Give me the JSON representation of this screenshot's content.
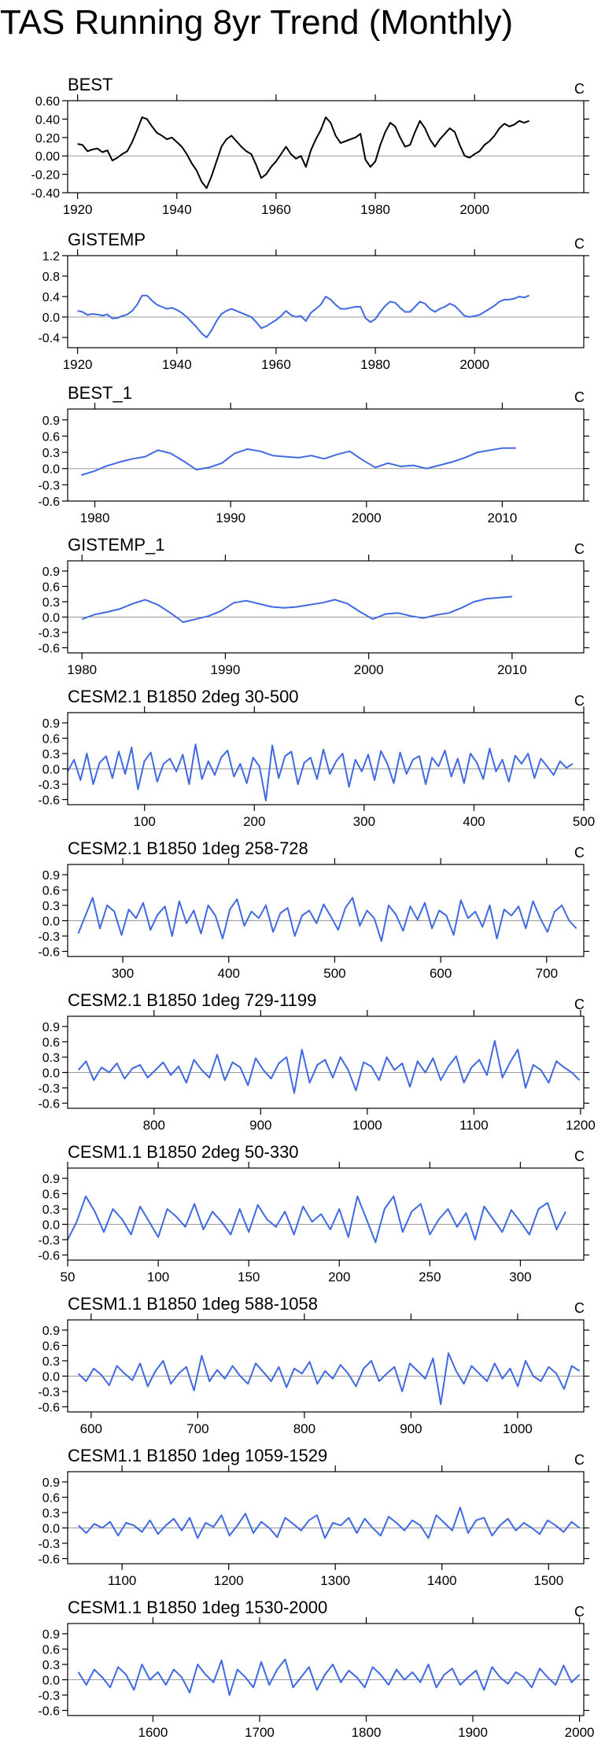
{
  "title": "TAS Running 8yr Trend (Monthly)",
  "chart_data": [
    {
      "type": "line",
      "title": "BEST",
      "units": "C",
      "xlim": [
        1918,
        2022
      ],
      "ylim": [
        -0.4,
        0.6
      ],
      "xticks": [
        1920,
        1940,
        1960,
        1980,
        2000
      ],
      "yticks": [
        -0.4,
        -0.2,
        0.0,
        0.2,
        0.4,
        0.6
      ],
      "ytick_labels": [
        "-0.40",
        "-0.20",
        "0.00",
        "0.20",
        "0.40",
        "0.60"
      ],
      "color": "#000000",
      "x_start": 1920,
      "x_end": 2011,
      "values": [
        0.13,
        0.12,
        0.05,
        0.07,
        0.08,
        0.04,
        0.06,
        -0.05,
        -0.02,
        0.02,
        0.05,
        0.15,
        0.28,
        0.42,
        0.4,
        0.32,
        0.25,
        0.22,
        0.18,
        0.2,
        0.15,
        0.1,
        0.02,
        -0.08,
        -0.16,
        -0.28,
        -0.35,
        -0.22,
        -0.06,
        0.1,
        0.18,
        0.22,
        0.16,
        0.1,
        0.05,
        0.02,
        -0.1,
        -0.24,
        -0.2,
        -0.12,
        -0.06,
        0.02,
        0.1,
        0.02,
        -0.03,
        0.0,
        -0.12,
        0.06,
        0.18,
        0.28,
        0.42,
        0.36,
        0.22,
        0.14,
        0.16,
        0.18,
        0.2,
        0.24,
        -0.04,
        -0.12,
        -0.06,
        0.12,
        0.26,
        0.36,
        0.32,
        0.2,
        0.1,
        0.12,
        0.26,
        0.38,
        0.3,
        0.18,
        0.1,
        0.18,
        0.24,
        0.3,
        0.26,
        0.12,
        0.0,
        -0.02,
        0.02,
        0.05,
        0.12,
        0.16,
        0.22,
        0.3,
        0.35,
        0.32,
        0.34,
        0.38,
        0.36,
        0.38
      ]
    },
    {
      "type": "line",
      "title": "GISTEMP",
      "units": "C",
      "xlim": [
        1918,
        2022
      ],
      "ylim": [
        -0.6,
        1.2
      ],
      "xticks": [
        1920,
        1940,
        1960,
        1980,
        2000
      ],
      "yticks": [
        -0.4,
        0.0,
        0.4,
        0.8,
        1.2
      ],
      "ytick_labels": [
        "-0.4",
        "0.0",
        "0.4",
        "0.8",
        "1.2"
      ],
      "color": "#4169e1",
      "x_start": 1920,
      "x_end": 2011,
      "values": [
        0.12,
        0.1,
        0.04,
        0.06,
        0.05,
        0.03,
        0.05,
        -0.03,
        -0.02,
        0.02,
        0.05,
        0.12,
        0.24,
        0.42,
        0.42,
        0.32,
        0.24,
        0.2,
        0.16,
        0.18,
        0.14,
        0.08,
        0.0,
        -0.1,
        -0.2,
        -0.32,
        -0.4,
        -0.26,
        -0.08,
        0.06,
        0.12,
        0.16,
        0.12,
        0.08,
        0.04,
        0.0,
        -0.1,
        -0.22,
        -0.18,
        -0.12,
        -0.06,
        0.02,
        0.12,
        0.04,
        0.0,
        0.02,
        -0.08,
        0.08,
        0.16,
        0.24,
        0.4,
        0.34,
        0.24,
        0.16,
        0.16,
        0.18,
        0.2,
        0.2,
        -0.02,
        -0.1,
        -0.04,
        0.1,
        0.22,
        0.3,
        0.28,
        0.18,
        0.1,
        0.1,
        0.2,
        0.3,
        0.26,
        0.16,
        0.1,
        0.16,
        0.2,
        0.26,
        0.22,
        0.12,
        0.02,
        0.0,
        0.02,
        0.04,
        0.1,
        0.16,
        0.22,
        0.3,
        0.34,
        0.34,
        0.36,
        0.4,
        0.38,
        0.42
      ]
    },
    {
      "type": "line",
      "title": "BEST_1",
      "units": "C",
      "xlim": [
        1978,
        2016
      ],
      "ylim": [
        -0.6,
        1.1
      ],
      "xticks": [
        1980,
        1990,
        2000,
        2010
      ],
      "yticks": [
        -0.6,
        -0.3,
        0.0,
        0.3,
        0.6,
        0.9
      ],
      "ytick_labels": [
        "-0.6",
        "-0.3",
        "0.0",
        "0.3",
        "0.6",
        "0.9"
      ],
      "color": "#4169e1",
      "x_start": 1979,
      "x_end": 2011,
      "values": [
        -0.12,
        -0.05,
        0.05,
        0.12,
        0.18,
        0.22,
        0.34,
        0.28,
        0.14,
        -0.02,
        0.02,
        0.1,
        0.28,
        0.36,
        0.32,
        0.24,
        0.22,
        0.2,
        0.24,
        0.18,
        0.26,
        0.32,
        0.16,
        0.02,
        0.1,
        0.04,
        0.06,
        0.0,
        0.06,
        0.12,
        0.2,
        0.3,
        0.34,
        0.38,
        0.38
      ]
    },
    {
      "type": "line",
      "title": "GISTEMP_1",
      "units": "C",
      "xlim": [
        1979,
        2015
      ],
      "ylim": [
        -0.7,
        1.1
      ],
      "xticks": [
        1980,
        1990,
        2000,
        2010
      ],
      "yticks": [
        -0.6,
        -0.3,
        0.0,
        0.3,
        0.6,
        0.9
      ],
      "ytick_labels": [
        "-0.6",
        "-0.3",
        "0.0",
        "0.3",
        "0.6",
        "0.9"
      ],
      "color": "#4169e1",
      "x_start": 1980,
      "x_end": 2010,
      "values": [
        -0.04,
        0.05,
        0.1,
        0.16,
        0.26,
        0.34,
        0.24,
        0.08,
        -0.1,
        -0.04,
        0.02,
        0.12,
        0.28,
        0.32,
        0.26,
        0.2,
        0.18,
        0.2,
        0.24,
        0.28,
        0.34,
        0.26,
        0.1,
        -0.04,
        0.06,
        0.08,
        0.02,
        -0.02,
        0.04,
        0.08,
        0.18,
        0.3,
        0.36,
        0.38,
        0.4
      ]
    },
    {
      "type": "line",
      "title": "CESM2.1 B1850 2deg 30-500",
      "units": "C",
      "xlim": [
        30,
        500
      ],
      "ylim": [
        -0.7,
        1.1
      ],
      "xticks": [
        100,
        200,
        300,
        400,
        500
      ],
      "yticks": [
        -0.6,
        -0.3,
        0.0,
        0.3,
        0.6,
        0.9
      ],
      "ytick_labels": [
        "-0.6",
        "-0.3",
        "0.0",
        "0.3",
        "0.6",
        "0.9"
      ],
      "color": "#4169e1",
      "x_start": 30,
      "x_end": 490,
      "values": [
        -0.05,
        0.18,
        -0.22,
        0.3,
        -0.3,
        0.12,
        0.25,
        -0.18,
        0.34,
        -0.1,
        0.42,
        -0.4,
        0.15,
        0.32,
        -0.25,
        0.1,
        0.2,
        -0.05,
        0.28,
        -0.3,
        0.48,
        -0.2,
        0.15,
        -0.12,
        0.22,
        0.36,
        -0.15,
        0.1,
        -0.28,
        0.22,
        0.05,
        -0.62,
        0.46,
        -0.18,
        0.25,
        0.34,
        -0.3,
        0.12,
        0.22,
        -0.2,
        0.38,
        -0.1,
        0.15,
        0.3,
        -0.35,
        0.18,
        -0.05,
        0.28,
        -0.22,
        0.35,
        0.1,
        -0.28,
        0.32,
        -0.1,
        0.18,
        0.25,
        -0.3,
        0.22,
        0.05,
        0.36,
        -0.15,
        0.2,
        -0.28,
        0.3,
        0.12,
        -0.2,
        0.4,
        -0.05,
        0.18,
        -0.25,
        0.26,
        0.1,
        0.3,
        -0.18,
        0.2,
        0.05,
        -0.12,
        0.15,
        0.02,
        0.1
      ]
    },
    {
      "type": "line",
      "title": "CESM2.1 B1850 1deg 258-728",
      "units": "C",
      "xlim": [
        248,
        735
      ],
      "ylim": [
        -0.7,
        1.1
      ],
      "xticks": [
        300,
        400,
        500,
        600,
        700
      ],
      "yticks": [
        -0.6,
        -0.3,
        0.0,
        0.3,
        0.6,
        0.9
      ],
      "ytick_labels": [
        "-0.6",
        "-0.3",
        "0.0",
        "0.3",
        "0.6",
        "0.9"
      ],
      "color": "#4169e1",
      "x_start": 258,
      "x_end": 728,
      "values": [
        -0.25,
        0.1,
        0.45,
        -0.15,
        0.3,
        0.18,
        -0.28,
        0.22,
        0.05,
        0.35,
        -0.18,
        0.12,
        0.28,
        -0.3,
        0.38,
        -0.05,
        0.2,
        -0.25,
        0.3,
        0.1,
        -0.35,
        0.22,
        0.42,
        -0.1,
        0.18,
        0.05,
        0.3,
        -0.22,
        0.15,
        0.25,
        -0.3,
        0.1,
        0.2,
        -0.05,
        0.32,
        0.08,
        -0.18,
        0.25,
        0.45,
        -0.1,
        0.2,
        0.05,
        -0.4,
        0.3,
        0.12,
        -0.2,
        0.28,
        0.02,
        0.35,
        -0.15,
        0.2,
        0.1,
        -0.28,
        0.4,
        0.05,
        0.18,
        -0.12,
        0.3,
        -0.35,
        0.22,
        0.1,
        0.28,
        -0.15,
        0.38,
        0.05,
        -0.22,
        0.18,
        0.3,
        0.0,
        -0.15
      ]
    },
    {
      "type": "line",
      "title": "CESM2.1 B1850 1deg 729-1199",
      "units": "C",
      "xlim": [
        719,
        1203
      ],
      "ylim": [
        -0.7,
        1.1
      ],
      "xticks": [
        800,
        900,
        1000,
        1100,
        1200
      ],
      "yticks": [
        -0.6,
        -0.3,
        0.0,
        0.3,
        0.6,
        0.9
      ],
      "ytick_labels": [
        "-0.6",
        "-0.3",
        "0.0",
        "0.3",
        "0.6",
        "0.9"
      ],
      "color": "#4169e1",
      "x_start": 729,
      "x_end": 1199,
      "values": [
        0.05,
        0.22,
        -0.15,
        0.1,
        0.0,
        0.18,
        -0.12,
        0.08,
        0.15,
        -0.1,
        0.05,
        0.2,
        -0.05,
        0.12,
        -0.2,
        0.25,
        0.05,
        -0.1,
        0.35,
        -0.15,
        0.2,
        0.1,
        -0.25,
        0.28,
        0.05,
        -0.12,
        0.18,
        0.3,
        -0.4,
        0.45,
        -0.2,
        0.15,
        0.25,
        -0.1,
        0.3,
        0.05,
        -0.35,
        0.2,
        0.12,
        -0.15,
        0.3,
        0.05,
        0.18,
        -0.28,
        0.22,
        0.0,
        0.28,
        -0.15,
        0.12,
        0.32,
        -0.2,
        0.1,
        0.25,
        -0.05,
        0.62,
        -0.1,
        0.2,
        0.45,
        -0.3,
        0.15,
        0.05,
        -0.2,
        0.22,
        0.1,
        0.0,
        -0.15
      ]
    },
    {
      "type": "line",
      "title": "CESM1.1 B1850 2deg 50-330",
      "units": "C",
      "xlim": [
        50,
        335
      ],
      "ylim": [
        -0.7,
        1.1
      ],
      "xticks": [
        50,
        100,
        150,
        200,
        250,
        300
      ],
      "yticks": [
        -0.6,
        -0.3,
        0.0,
        0.3,
        0.6,
        0.9
      ],
      "ytick_labels": [
        "-0.6",
        "-0.3",
        "0.0",
        "0.3",
        "0.6",
        "0.9"
      ],
      "color": "#4169e1",
      "x_start": 50,
      "x_end": 325,
      "values": [
        -0.3,
        0.05,
        0.55,
        0.25,
        -0.15,
        0.3,
        0.1,
        -0.2,
        0.35,
        0.05,
        -0.25,
        0.3,
        0.15,
        -0.05,
        0.4,
        -0.1,
        0.25,
        0.05,
        -0.2,
        0.3,
        -0.15,
        0.38,
        0.1,
        -0.05,
        0.25,
        -0.2,
        0.35,
        0.05,
        0.2,
        -0.1,
        0.3,
        -0.25,
        0.55,
        0.1,
        -0.35,
        0.3,
        0.55,
        -0.15,
        0.25,
        0.4,
        -0.2,
        0.1,
        0.3,
        -0.05,
        0.22,
        -0.3,
        0.35,
        0.1,
        -0.15,
        0.28,
        0.05,
        -0.2,
        0.3,
        0.42,
        -0.1,
        0.25
      ]
    },
    {
      "type": "line",
      "title": "CESM1.1 B1850 1deg 588-1058",
      "units": "C",
      "xlim": [
        578,
        1062
      ],
      "ylim": [
        -0.7,
        1.1
      ],
      "xticks": [
        600,
        700,
        800,
        900,
        1000
      ],
      "yticks": [
        -0.6,
        -0.3,
        0.0,
        0.3,
        0.6,
        0.9
      ],
      "ytick_labels": [
        "-0.6",
        "-0.3",
        "0.0",
        "0.3",
        "0.6",
        "0.9"
      ],
      "color": "#4169e1",
      "x_start": 588,
      "x_end": 1058,
      "values": [
        0.05,
        -0.1,
        0.15,
        0.02,
        -0.18,
        0.2,
        0.05,
        -0.08,
        0.25,
        -0.2,
        0.1,
        0.3,
        -0.15,
        0.05,
        0.18,
        -0.28,
        0.4,
        -0.1,
        0.12,
        -0.05,
        0.2,
        0.0,
        -0.15,
        0.25,
        0.08,
        -0.1,
        0.18,
        -0.22,
        0.15,
        0.05,
        0.28,
        -0.15,
        0.1,
        -0.05,
        0.22,
        0.05,
        -0.2,
        0.15,
        0.3,
        -0.1,
        0.05,
        0.18,
        -0.3,
        0.25,
        0.1,
        -0.05,
        0.35,
        -0.55,
        0.45,
        0.1,
        -0.15,
        0.2,
        0.05,
        -0.1,
        0.25,
        -0.05,
        0.15,
        -0.2,
        0.3,
        0.0,
        -0.1,
        0.18,
        0.05,
        -0.25,
        0.2,
        0.1
      ]
    },
    {
      "type": "line",
      "title": "CESM1.1 B1850 1deg 1059-1529",
      "units": "C",
      "xlim": [
        1049,
        1533
      ],
      "ylim": [
        -0.7,
        1.1
      ],
      "xticks": [
        1100,
        1200,
        1300,
        1400,
        1500
      ],
      "yticks": [
        -0.6,
        -0.3,
        0.0,
        0.3,
        0.6,
        0.9
      ],
      "ytick_labels": [
        "-0.6",
        "-0.3",
        "0.0",
        "0.3",
        "0.6",
        "0.9"
      ],
      "color": "#4169e1",
      "x_start": 1059,
      "x_end": 1529,
      "values": [
        0.05,
        -0.1,
        0.08,
        0.0,
        0.12,
        -0.15,
        0.1,
        0.05,
        -0.08,
        0.15,
        -0.12,
        0.05,
        0.18,
        -0.05,
        0.2,
        -0.2,
        0.1,
        0.02,
        0.25,
        -0.15,
        0.05,
        0.28,
        -0.1,
        0.12,
        0.0,
        -0.18,
        0.2,
        0.08,
        -0.05,
        0.15,
        0.25,
        -0.2,
        0.1,
        0.05,
        0.2,
        -0.1,
        0.18,
        0.0,
        -0.15,
        0.22,
        0.1,
        -0.05,
        0.15,
        0.05,
        -0.2,
        0.25,
        0.1,
        -0.05,
        0.4,
        -0.1,
        0.15,
        0.2,
        -0.15,
        0.05,
        0.18,
        -0.05,
        0.1,
        0.0,
        -0.12,
        0.15,
        0.05,
        -0.08,
        0.12,
        0.0
      ]
    },
    {
      "type": "line",
      "title": "CESM1.1 B1850 1deg 1530-2000",
      "units": "C",
      "xlim": [
        1520,
        2004
      ],
      "ylim": [
        -0.7,
        1.1
      ],
      "xticks": [
        1600,
        1700,
        1800,
        1900,
        2000
      ],
      "yticks": [
        -0.6,
        -0.3,
        0.0,
        0.3,
        0.6,
        0.9
      ],
      "ytick_labels": [
        "-0.6",
        "-0.3",
        "0.0",
        "0.3",
        "0.6",
        "0.9"
      ],
      "color": "#4169e1",
      "x_start": 1530,
      "x_end": 2000,
      "values": [
        0.15,
        -0.1,
        0.2,
        0.05,
        -0.15,
        0.25,
        0.1,
        -0.2,
        0.3,
        0.0,
        0.15,
        -0.1,
        0.2,
        0.05,
        -0.25,
        0.3,
        0.1,
        -0.05,
        0.38,
        -0.3,
        0.2,
        0.05,
        -0.15,
        0.35,
        -0.1,
        0.2,
        0.4,
        -0.15,
        0.05,
        0.25,
        -0.2,
        0.1,
        0.3,
        -0.05,
        0.18,
        0.05,
        -0.15,
        0.25,
        0.1,
        -0.1,
        0.2,
        0.0,
        0.15,
        -0.05,
        0.3,
        -0.15,
        0.1,
        0.22,
        -0.1,
        0.05,
        0.18,
        -0.2,
        0.25,
        0.05,
        -0.08,
        0.15,
        0.05,
        -0.15,
        0.22,
        0.05,
        -0.1,
        0.28,
        -0.05,
        0.1
      ]
    }
  ]
}
